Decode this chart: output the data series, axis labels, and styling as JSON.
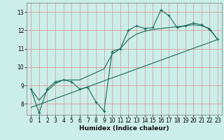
{
  "title": "",
  "xlabel": "Humidex (Indice chaleur)",
  "bg_color": "#cceee8",
  "grid_color": "#d4a0a0",
  "line_color": "#1a6b5a",
  "xlim": [
    -0.5,
    23.5
  ],
  "ylim": [
    7.4,
    13.5
  ],
  "yticks": [
    8,
    9,
    10,
    11,
    12,
    13
  ],
  "xticks": [
    0,
    1,
    2,
    3,
    4,
    5,
    6,
    7,
    8,
    9,
    10,
    11,
    12,
    13,
    14,
    15,
    16,
    17,
    18,
    19,
    20,
    21,
    22,
    23
  ],
  "line1_x": [
    0,
    1,
    2,
    3,
    4,
    5,
    6,
    7,
    8,
    9,
    10,
    11,
    12,
    13,
    14,
    15,
    16,
    17,
    18,
    19,
    20,
    21,
    22,
    23
  ],
  "line1_y": [
    8.8,
    7.5,
    8.8,
    9.2,
    9.3,
    9.2,
    8.8,
    8.9,
    8.1,
    7.6,
    10.85,
    11.0,
    12.0,
    12.25,
    12.1,
    12.15,
    13.1,
    12.8,
    12.15,
    12.25,
    12.4,
    12.3,
    12.05,
    11.5
  ],
  "line2_x": [
    0,
    1,
    2,
    3,
    4,
    5,
    6,
    7,
    8,
    9,
    10,
    11,
    12,
    13,
    14,
    15,
    16,
    17,
    18,
    19,
    20,
    21,
    22,
    23
  ],
  "line2_y": [
    8.8,
    8.2,
    8.7,
    9.1,
    9.3,
    9.3,
    9.3,
    9.5,
    9.7,
    9.9,
    10.7,
    11.0,
    11.5,
    11.8,
    11.95,
    12.05,
    12.1,
    12.15,
    12.2,
    12.25,
    12.3,
    12.25,
    12.1,
    11.5
  ],
  "line3_x": [
    0,
    23
  ],
  "line3_y": [
    7.8,
    11.5
  ]
}
